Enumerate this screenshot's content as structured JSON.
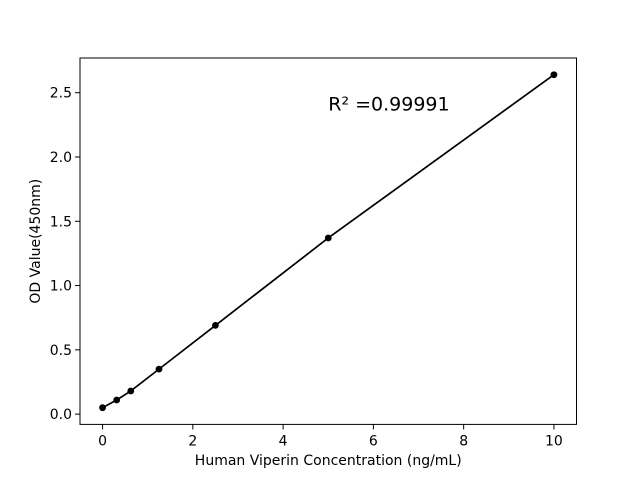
{
  "chart_data": {
    "type": "scatter",
    "title": "",
    "xlabel": "Human Viperin Concentration (ng/mL)",
    "ylabel": "OD Value(450nm)",
    "x": [
      0,
      0.3125,
      0.625,
      1.25,
      2.5,
      5,
      10
    ],
    "y": [
      0.05,
      0.11,
      0.18,
      0.35,
      0.69,
      1.37,
      2.64
    ],
    "r_squared": 0.99991,
    "annotation": {
      "text": "R² =0.99991",
      "x": 5.0,
      "y": 2.36
    },
    "xlim": [
      -0.5,
      10.5
    ],
    "ylim": [
      -0.08,
      2.77
    ],
    "xticks": {
      "values": [
        0,
        2,
        4,
        6,
        8,
        10
      ],
      "labels": [
        "0",
        "2",
        "4",
        "6",
        "8",
        "10"
      ]
    },
    "yticks": {
      "values": [
        0,
        0.5,
        1,
        1.5,
        2,
        2.5
      ],
      "labels": [
        "0.0",
        "0.5",
        "1.0",
        "1.5",
        "2.0",
        "2.5"
      ]
    },
    "grid": false,
    "legend": false,
    "marker": "circle",
    "line_color": "#000000",
    "marker_color": "#000000",
    "axis_color": "#000000",
    "background": "#ffffff"
  }
}
